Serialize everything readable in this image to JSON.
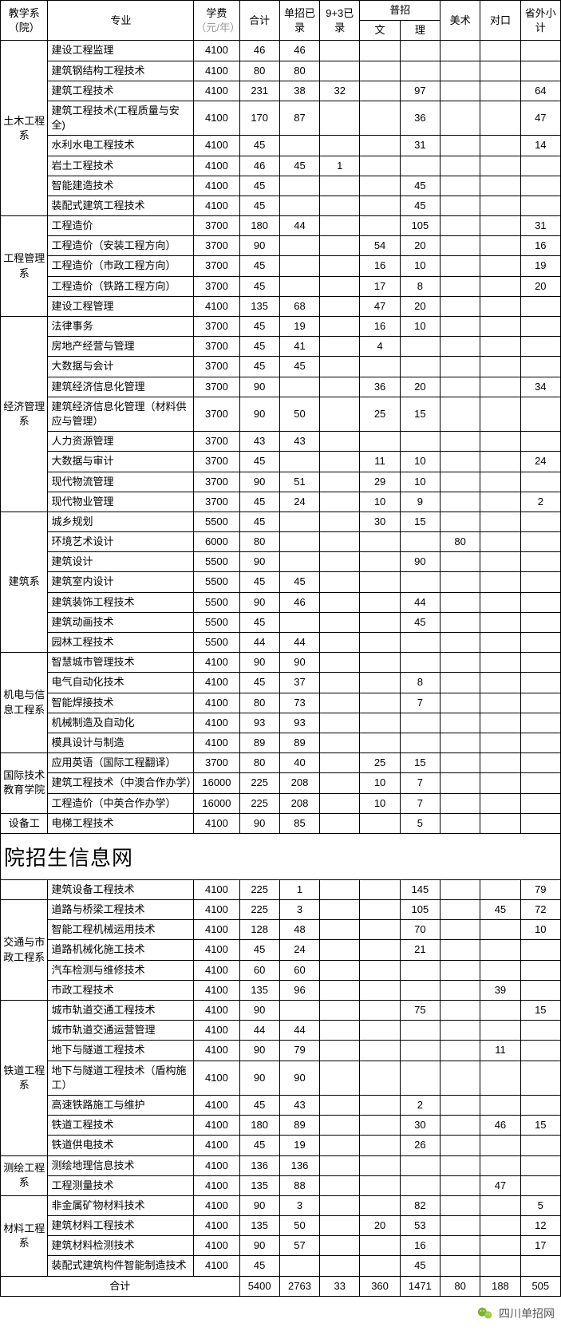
{
  "headers": {
    "dept": "教学系（院）",
    "major": "专业",
    "tuition": "学费",
    "tuition_sub": "（元/年）",
    "total": "合计",
    "single": "单招已录",
    "nine3": "9+3已录",
    "general": "普招",
    "gen_wen": "文",
    "gen_li": "理",
    "art": "美术",
    "duikou": "对口",
    "outprov": "省外小计"
  },
  "banner": "院招生信息网",
  "footer_text": "四川单招网",
  "total_label": "合计",
  "totals": {
    "total": "5400",
    "single": "2763",
    "nine3": "33",
    "wen": "360",
    "li": "1471",
    "art": "80",
    "dk": "188",
    "out": "505"
  },
  "groups": [
    {
      "dept": "土木工程系",
      "rows": [
        {
          "major": "建设工程监理",
          "fee": "4100",
          "total": "46",
          "single": "46",
          "nine3": "",
          "wen": "",
          "li": "",
          "art": "",
          "dk": "",
          "out": ""
        },
        {
          "major": "建筑钢结构工程技术",
          "fee": "4100",
          "total": "80",
          "single": "80",
          "nine3": "",
          "wen": "",
          "li": "",
          "art": "",
          "dk": "",
          "out": ""
        },
        {
          "major": "建筑工程技术",
          "fee": "4100",
          "total": "231",
          "single": "38",
          "nine3": "32",
          "wen": "",
          "li": "97",
          "art": "",
          "dk": "",
          "out": "64"
        },
        {
          "major": "建筑工程技术(工程质量与安全)",
          "fee": "4100",
          "total": "170",
          "single": "87",
          "nine3": "",
          "wen": "",
          "li": "36",
          "art": "",
          "dk": "",
          "out": "47"
        },
        {
          "major": "水利水电工程技术",
          "fee": "4100",
          "total": "45",
          "single": "",
          "nine3": "",
          "wen": "",
          "li": "31",
          "art": "",
          "dk": "",
          "out": "14"
        },
        {
          "major": "岩土工程技术",
          "fee": "4100",
          "total": "46",
          "single": "45",
          "nine3": "1",
          "wen": "",
          "li": "",
          "art": "",
          "dk": "",
          "out": ""
        },
        {
          "major": "智能建造技术",
          "fee": "4100",
          "total": "45",
          "single": "",
          "nine3": "",
          "wen": "",
          "li": "45",
          "art": "",
          "dk": "",
          "out": ""
        },
        {
          "major": "装配式建筑工程技术",
          "fee": "4100",
          "total": "45",
          "single": "",
          "nine3": "",
          "wen": "",
          "li": "45",
          "art": "",
          "dk": "",
          "out": ""
        }
      ]
    },
    {
      "dept": "工程管理系",
      "rows": [
        {
          "major": "工程造价",
          "fee": "3700",
          "total": "180",
          "single": "44",
          "nine3": "",
          "wen": "",
          "li": "105",
          "art": "",
          "dk": "",
          "out": "31"
        },
        {
          "major": "工程造价（安装工程方向）",
          "fee": "3700",
          "total": "90",
          "single": "",
          "nine3": "",
          "wen": "54",
          "li": "20",
          "art": "",
          "dk": "",
          "out": "16"
        },
        {
          "major": "工程造价（市政工程方向）",
          "fee": "3700",
          "total": "45",
          "single": "",
          "nine3": "",
          "wen": "16",
          "li": "10",
          "art": "",
          "dk": "",
          "out": "19"
        },
        {
          "major": "工程造价（铁路工程方向）",
          "fee": "3700",
          "total": "45",
          "single": "",
          "nine3": "",
          "wen": "17",
          "li": "8",
          "art": "",
          "dk": "",
          "out": "20"
        },
        {
          "major": "建设工程管理",
          "fee": "4100",
          "total": "135",
          "single": "68",
          "nine3": "",
          "wen": "47",
          "li": "20",
          "art": "",
          "dk": "",
          "out": ""
        }
      ]
    },
    {
      "dept": "经济管理系",
      "rows": [
        {
          "major": "法律事务",
          "fee": "3700",
          "total": "45",
          "single": "19",
          "nine3": "",
          "wen": "16",
          "li": "10",
          "art": "",
          "dk": "",
          "out": ""
        },
        {
          "major": "房地产经营与管理",
          "fee": "3700",
          "total": "45",
          "single": "41",
          "nine3": "",
          "wen": "4",
          "li": "",
          "art": "",
          "dk": "",
          "out": ""
        },
        {
          "major": "大数据与会计",
          "fee": "3700",
          "total": "45",
          "single": "45",
          "nine3": "",
          "wen": "",
          "li": "",
          "art": "",
          "dk": "",
          "out": ""
        },
        {
          "major": "建筑经济信息化管理",
          "fee": "3700",
          "total": "90",
          "single": "",
          "nine3": "",
          "wen": "36",
          "li": "20",
          "art": "",
          "dk": "",
          "out": "34"
        },
        {
          "major": "建筑经济信息化管理（材料供应与管理）",
          "fee": "3700",
          "total": "90",
          "single": "50",
          "nine3": "",
          "wen": "25",
          "li": "15",
          "art": "",
          "dk": "",
          "out": ""
        },
        {
          "major": "人力资源管理",
          "fee": "3700",
          "total": "43",
          "single": "43",
          "nine3": "",
          "wen": "",
          "li": "",
          "art": "",
          "dk": "",
          "out": ""
        },
        {
          "major": "大数据与审计",
          "fee": "3700",
          "total": "45",
          "single": "",
          "nine3": "",
          "wen": "11",
          "li": "10",
          "art": "",
          "dk": "",
          "out": "24"
        },
        {
          "major": "现代物流管理",
          "fee": "3700",
          "total": "90",
          "single": "51",
          "nine3": "",
          "wen": "29",
          "li": "10",
          "art": "",
          "dk": "",
          "out": ""
        },
        {
          "major": "现代物业管理",
          "fee": "3700",
          "total": "45",
          "single": "24",
          "nine3": "",
          "wen": "10",
          "li": "9",
          "art": "",
          "dk": "",
          "out": "2"
        }
      ]
    },
    {
      "dept": "建筑系",
      "rows": [
        {
          "major": "城乡规划",
          "fee": "5500",
          "total": "45",
          "single": "",
          "nine3": "",
          "wen": "30",
          "li": "15",
          "art": "",
          "dk": "",
          "out": ""
        },
        {
          "major": "环境艺术设计",
          "fee": "6000",
          "total": "80",
          "single": "",
          "nine3": "",
          "wen": "",
          "li": "",
          "art": "80",
          "dk": "",
          "out": ""
        },
        {
          "major": "建筑设计",
          "fee": "5500",
          "total": "90",
          "single": "",
          "nine3": "",
          "wen": "",
          "li": "90",
          "art": "",
          "dk": "",
          "out": ""
        },
        {
          "major": "建筑室内设计",
          "fee": "5500",
          "total": "45",
          "single": "45",
          "nine3": "",
          "wen": "",
          "li": "",
          "art": "",
          "dk": "",
          "out": ""
        },
        {
          "major": "建筑装饰工程技术",
          "fee": "5500",
          "total": "90",
          "single": "46",
          "nine3": "",
          "wen": "",
          "li": "44",
          "art": "",
          "dk": "",
          "out": ""
        },
        {
          "major": "建筑动画技术",
          "fee": "5500",
          "total": "45",
          "single": "",
          "nine3": "",
          "wen": "",
          "li": "45",
          "art": "",
          "dk": "",
          "out": ""
        },
        {
          "major": "园林工程技术",
          "fee": "5500",
          "total": "44",
          "single": "44",
          "nine3": "",
          "wen": "",
          "li": "",
          "art": "",
          "dk": "",
          "out": ""
        }
      ]
    },
    {
      "dept": "机电与信息工程系",
      "rows": [
        {
          "major": "智慧城市管理技术",
          "fee": "4100",
          "total": "90",
          "single": "90",
          "nine3": "",
          "wen": "",
          "li": "",
          "art": "",
          "dk": "",
          "out": ""
        },
        {
          "major": "电气自动化技术",
          "fee": "4100",
          "total": "45",
          "single": "37",
          "nine3": "",
          "wen": "",
          "li": "8",
          "art": "",
          "dk": "",
          "out": ""
        },
        {
          "major": "智能焊接技术",
          "fee": "4100",
          "total": "80",
          "single": "73",
          "nine3": "",
          "wen": "",
          "li": "7",
          "art": "",
          "dk": "",
          "out": ""
        },
        {
          "major": "机械制造及自动化",
          "fee": "4100",
          "total": "93",
          "single": "93",
          "nine3": "",
          "wen": "",
          "li": "",
          "art": "",
          "dk": "",
          "out": ""
        },
        {
          "major": "模具设计与制造",
          "fee": "4100",
          "total": "89",
          "single": "89",
          "nine3": "",
          "wen": "",
          "li": "",
          "art": "",
          "dk": "",
          "out": ""
        }
      ]
    },
    {
      "dept": "国际技术教育学院",
      "rows": [
        {
          "major": "应用英语（国际工程翻译）",
          "fee": "3700",
          "total": "80",
          "single": "40",
          "nine3": "",
          "wen": "25",
          "li": "15",
          "art": "",
          "dk": "",
          "out": ""
        },
        {
          "major": "建筑工程技术（中澳合作办学）",
          "fee": "16000",
          "total": "225",
          "single": "208",
          "nine3": "",
          "wen": "10",
          "li": "7",
          "art": "",
          "dk": "",
          "out": ""
        },
        {
          "major": "工程造价（中英合作办学）",
          "fee": "16000",
          "total": "225",
          "single": "208",
          "nine3": "",
          "wen": "10",
          "li": "7",
          "art": "",
          "dk": "",
          "out": ""
        }
      ]
    },
    {
      "dept": "设备工",
      "rows": [
        {
          "major": "电梯工程技术",
          "fee": "4100",
          "total": "90",
          "single": "85",
          "nine3": "",
          "wen": "",
          "li": "5",
          "art": "",
          "dk": "",
          "out": ""
        }
      ]
    }
  ],
  "groups2": [
    {
      "dept": "",
      "rows": [
        {
          "major": "建筑设备工程技术",
          "fee": "4100",
          "total": "225",
          "single": "1",
          "nine3": "",
          "wen": "",
          "li": "145",
          "art": "",
          "dk": "",
          "out": "79"
        }
      ]
    },
    {
      "dept": "交通与市政工程系",
      "rows": [
        {
          "major": "道路与桥梁工程技术",
          "fee": "4100",
          "total": "225",
          "single": "3",
          "nine3": "",
          "wen": "",
          "li": "105",
          "art": "",
          "dk": "45",
          "out": "72"
        },
        {
          "major": "智能工程机械运用技术",
          "fee": "4100",
          "total": "128",
          "single": "48",
          "nine3": "",
          "wen": "",
          "li": "70",
          "art": "",
          "dk": "",
          "out": "10"
        },
        {
          "major": "道路机械化施工技术",
          "fee": "4100",
          "total": "45",
          "single": "24",
          "nine3": "",
          "wen": "",
          "li": "21",
          "art": "",
          "dk": "",
          "out": ""
        },
        {
          "major": "汽车检测与维修技术",
          "fee": "4100",
          "total": "60",
          "single": "60",
          "nine3": "",
          "wen": "",
          "li": "",
          "art": "",
          "dk": "",
          "out": ""
        },
        {
          "major": "市政工程技术",
          "fee": "4100",
          "total": "135",
          "single": "96",
          "nine3": "",
          "wen": "",
          "li": "",
          "art": "",
          "dk": "39",
          "out": ""
        }
      ]
    },
    {
      "dept": "铁道工程系",
      "rows": [
        {
          "major": "城市轨道交通工程技术",
          "fee": "4100",
          "total": "90",
          "single": "",
          "nine3": "",
          "wen": "",
          "li": "75",
          "art": "",
          "dk": "",
          "out": "15"
        },
        {
          "major": "城市轨道交通运营管理",
          "fee": "4100",
          "total": "44",
          "single": "44",
          "nine3": "",
          "wen": "",
          "li": "",
          "art": "",
          "dk": "",
          "out": ""
        },
        {
          "major": "地下与隧道工程技术",
          "fee": "4100",
          "total": "90",
          "single": "79",
          "nine3": "",
          "wen": "",
          "li": "",
          "art": "",
          "dk": "11",
          "out": ""
        },
        {
          "major": "地下与隧道工程技术（盾构施工）",
          "fee": "4100",
          "total": "90",
          "single": "90",
          "nine3": "",
          "wen": "",
          "li": "",
          "art": "",
          "dk": "",
          "out": ""
        },
        {
          "major": "高速铁路施工与维护",
          "fee": "4100",
          "total": "45",
          "single": "43",
          "nine3": "",
          "wen": "",
          "li": "2",
          "art": "",
          "dk": "",
          "out": ""
        },
        {
          "major": "铁道工程技术",
          "fee": "4100",
          "total": "180",
          "single": "89",
          "nine3": "",
          "wen": "",
          "li": "30",
          "art": "",
          "dk": "46",
          "out": "15"
        },
        {
          "major": "铁道供电技术",
          "fee": "4100",
          "total": "45",
          "single": "19",
          "nine3": "",
          "wen": "",
          "li": "26",
          "art": "",
          "dk": "",
          "out": ""
        }
      ]
    },
    {
      "dept": "测绘工程系",
      "rows": [
        {
          "major": "测绘地理信息技术",
          "fee": "4100",
          "total": "136",
          "single": "136",
          "nine3": "",
          "wen": "",
          "li": "",
          "art": "",
          "dk": "",
          "out": ""
        },
        {
          "major": "工程测量技术",
          "fee": "4100",
          "total": "135",
          "single": "88",
          "nine3": "",
          "wen": "",
          "li": "",
          "art": "",
          "dk": "47",
          "out": ""
        }
      ]
    },
    {
      "dept": "材料工程系",
      "rows": [
        {
          "major": "非金属矿物材料技术",
          "fee": "4100",
          "total": "90",
          "single": "3",
          "nine3": "",
          "wen": "",
          "li": "82",
          "art": "",
          "dk": "",
          "out": "5"
        },
        {
          "major": "建筑材料工程技术",
          "fee": "4100",
          "total": "135",
          "single": "50",
          "nine3": "",
          "wen": "20",
          "li": "53",
          "art": "",
          "dk": "",
          "out": "12"
        },
        {
          "major": "建筑材料检测技术",
          "fee": "4100",
          "total": "90",
          "single": "57",
          "nine3": "",
          "wen": "",
          "li": "16",
          "art": "",
          "dk": "",
          "out": "17"
        },
        {
          "major": "装配式建筑构件智能制造技术",
          "fee": "4100",
          "total": "45",
          "single": "",
          "nine3": "",
          "wen": "",
          "li": "45",
          "art": "",
          "dk": "",
          "out": ""
        }
      ]
    }
  ]
}
